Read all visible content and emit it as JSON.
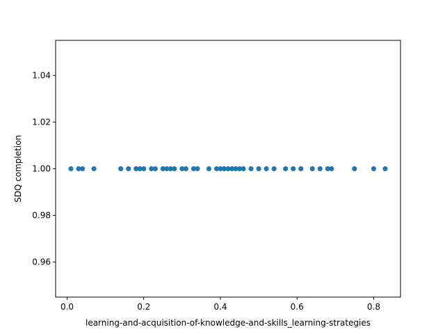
{
  "chart_data": {
    "type": "scatter",
    "title": "",
    "xlabel": "learning-and-acquisition-of-knowledge-and-skills_learning-strategies",
    "ylabel": "SDQ completion",
    "xlim": [
      -0.03,
      0.87
    ],
    "ylim": [
      0.945,
      1.055
    ],
    "xticks": [
      0.0,
      0.2,
      0.4,
      0.6,
      0.8
    ],
    "xtick_labels": [
      "0.0",
      "0.2",
      "0.4",
      "0.6",
      "0.8"
    ],
    "yticks": [
      0.96,
      0.98,
      1.0,
      1.02,
      1.04
    ],
    "ytick_labels": [
      "0.96",
      "0.98",
      "1.00",
      "1.02",
      "1.04"
    ],
    "grid": false,
    "color": "#1f77b4",
    "points": [
      {
        "x": 0.01,
        "y": 1.0
      },
      {
        "x": 0.03,
        "y": 1.0
      },
      {
        "x": 0.04,
        "y": 1.0
      },
      {
        "x": 0.07,
        "y": 1.0
      },
      {
        "x": 0.14,
        "y": 1.0
      },
      {
        "x": 0.16,
        "y": 1.0
      },
      {
        "x": 0.18,
        "y": 1.0
      },
      {
        "x": 0.19,
        "y": 1.0
      },
      {
        "x": 0.2,
        "y": 1.0
      },
      {
        "x": 0.22,
        "y": 1.0
      },
      {
        "x": 0.23,
        "y": 1.0
      },
      {
        "x": 0.25,
        "y": 1.0
      },
      {
        "x": 0.26,
        "y": 1.0
      },
      {
        "x": 0.27,
        "y": 1.0
      },
      {
        "x": 0.28,
        "y": 1.0
      },
      {
        "x": 0.3,
        "y": 1.0
      },
      {
        "x": 0.31,
        "y": 1.0
      },
      {
        "x": 0.33,
        "y": 1.0
      },
      {
        "x": 0.34,
        "y": 1.0
      },
      {
        "x": 0.37,
        "y": 1.0
      },
      {
        "x": 0.39,
        "y": 1.0
      },
      {
        "x": 0.4,
        "y": 1.0
      },
      {
        "x": 0.41,
        "y": 1.0
      },
      {
        "x": 0.42,
        "y": 1.0
      },
      {
        "x": 0.43,
        "y": 1.0
      },
      {
        "x": 0.44,
        "y": 1.0
      },
      {
        "x": 0.45,
        "y": 1.0
      },
      {
        "x": 0.46,
        "y": 1.0
      },
      {
        "x": 0.48,
        "y": 1.0
      },
      {
        "x": 0.5,
        "y": 1.0
      },
      {
        "x": 0.52,
        "y": 1.0
      },
      {
        "x": 0.54,
        "y": 1.0
      },
      {
        "x": 0.57,
        "y": 1.0
      },
      {
        "x": 0.59,
        "y": 1.0
      },
      {
        "x": 0.61,
        "y": 1.0
      },
      {
        "x": 0.64,
        "y": 1.0
      },
      {
        "x": 0.66,
        "y": 1.0
      },
      {
        "x": 0.68,
        "y": 1.0
      },
      {
        "x": 0.69,
        "y": 1.0
      },
      {
        "x": 0.75,
        "y": 1.0
      },
      {
        "x": 0.8,
        "y": 1.0
      },
      {
        "x": 0.83,
        "y": 1.0
      }
    ]
  }
}
